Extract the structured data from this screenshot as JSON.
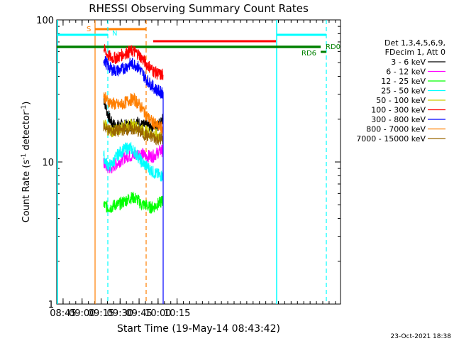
{
  "chart_data": {
    "type": "line",
    "title": "RHESSI Observing Summary Count Rates",
    "xlabel": "Start Time (19-May-14 08:43:42)",
    "ylabel": "Count Rate (s",
    "ylabel_sup": "-1",
    "ylabel_tail": " detector",
    "ylabel_tail_sup": "-1",
    "ylabel_close": ")",
    "y_scale": "log",
    "ylim": [
      1,
      100
    ],
    "xlim_minutes": [
      520,
      744
    ],
    "x_ticks": [
      {
        "label": "08:45",
        "minute": 525
      },
      {
        "label": "09:00",
        "minute": 540
      },
      {
        "label": "09:15",
        "minute": 555
      },
      {
        "label": "09:30",
        "minute": 570
      },
      {
        "label": "09:45",
        "minute": 585
      },
      {
        "label": "10:00",
        "minute": 600
      },
      {
        "label": "10:15",
        "minute": 615
      }
    ],
    "y_ticks": [
      {
        "label": "1",
        "value": 1
      },
      {
        "label": "10",
        "value": 10
      },
      {
        "label": "100",
        "value": 100
      }
    ],
    "timestamp": "23-Oct-2021 18:38",
    "legend": {
      "header1": "Det 1,3,4,5,6,9,",
      "header2": "FDecim 1, Att 0",
      "placement": "right"
    },
    "markers": [
      {
        "label": "S",
        "color": "#ff7f00"
      },
      {
        "label": "N",
        "color": "#00ffff"
      },
      {
        "label": "RD0",
        "color": "#008000"
      },
      {
        "label": "RD6",
        "color": "#008000"
      }
    ],
    "series": [
      {
        "name": "3 - 6 keV",
        "color": "#000000",
        "x": [
          557,
          560,
          563,
          566,
          569,
          572,
          575,
          578,
          581,
          584,
          587,
          590,
          593,
          596,
          599,
          602,
          604
        ],
        "y": [
          28,
          22,
          19,
          18,
          18,
          18,
          18,
          18,
          19,
          19,
          18,
          18,
          18,
          18,
          18,
          19,
          20
        ]
      },
      {
        "name": "6 - 12 keV",
        "color": "#ff00ff",
        "x": [
          557,
          560,
          563,
          566,
          569,
          572,
          575,
          578,
          581,
          584,
          587,
          590,
          593,
          596,
          599,
          602,
          604
        ],
        "y": [
          10,
          9,
          9,
          9.5,
          10,
          10.5,
          11,
          11,
          11,
          11.5,
          11.5,
          11,
          11,
          11,
          11.5,
          12,
          12
        ]
      },
      {
        "name": "12 - 25 keV",
        "color": "#00ff00",
        "x": [
          557,
          560,
          563,
          566,
          569,
          572,
          575,
          578,
          581,
          584,
          587,
          590,
          593,
          596,
          599,
          602,
          604
        ],
        "y": [
          5,
          4.8,
          4.8,
          5,
          5,
          5.2,
          5.4,
          5.6,
          5.6,
          5.4,
          5,
          5,
          4.8,
          4.8,
          5,
          5.2,
          5.4
        ]
      },
      {
        "name": "25 - 50 keV",
        "color": "#00ffff",
        "x": [
          557,
          560,
          563,
          566,
          569,
          572,
          575,
          578,
          581,
          584,
          587,
          590,
          593,
          596,
          599,
          602,
          604
        ],
        "y": [
          11,
          9.5,
          9.5,
          10.5,
          11.5,
          12,
          12.5,
          12.5,
          12,
          11,
          10,
          9.5,
          9,
          8.5,
          8.2,
          8,
          8
        ]
      },
      {
        "name": "50 - 100 keV",
        "color": "#cccc00",
        "x": [
          557,
          560,
          563,
          566,
          569,
          572,
          575,
          578,
          581,
          584,
          587,
          590,
          593,
          596,
          599,
          602,
          604
        ],
        "y": [
          19,
          17,
          16.5,
          16.5,
          17,
          17.5,
          18,
          18,
          18,
          17.5,
          17,
          16.5,
          16,
          15.5,
          15.5,
          15,
          15
        ]
      },
      {
        "name": "100 - 300 keV",
        "color": "#ff0000",
        "x": [
          557,
          560,
          563,
          566,
          569,
          572,
          575,
          578,
          581,
          584,
          587,
          590,
          593,
          596,
          599,
          602,
          604
        ],
        "y": [
          62,
          57,
          54,
          54,
          55,
          57,
          59,
          60,
          60,
          58,
          54,
          50,
          47,
          44,
          42,
          41,
          41
        ]
      },
      {
        "name": "300 - 800 keV",
        "color": "#0000ff",
        "x": [
          557,
          560,
          563,
          566,
          569,
          572,
          575,
          578,
          581,
          584,
          587,
          590,
          593,
          596,
          599,
          602,
          604
        ],
        "y": [
          53,
          48,
          45,
          44,
          44,
          45,
          47,
          49,
          49,
          47,
          43,
          39,
          36,
          34,
          32,
          31,
          31
        ]
      },
      {
        "name": "800 - 7000 keV",
        "color": "#ff7f00",
        "x": [
          557,
          560,
          563,
          566,
          569,
          572,
          575,
          578,
          581,
          584,
          587,
          590,
          593,
          596,
          599,
          602,
          604
        ],
        "y": [
          29,
          27,
          26,
          25.5,
          25,
          25.5,
          26.5,
          27.5,
          27.5,
          26,
          24,
          22,
          20,
          19,
          18,
          17.5,
          17
        ]
      },
      {
        "name": "7000 - 15000 keV",
        "color": "#996600",
        "x": [
          557,
          560,
          563,
          566,
          569,
          572,
          575,
          578,
          581,
          584,
          587,
          590,
          593,
          596,
          599,
          602,
          604
        ],
        "y": [
          18,
          17,
          16.5,
          16.5,
          16.5,
          17,
          17,
          17,
          17,
          16.5,
          16,
          15.5,
          15,
          15,
          14.5,
          14.5,
          14.5
        ]
      }
    ]
  }
}
